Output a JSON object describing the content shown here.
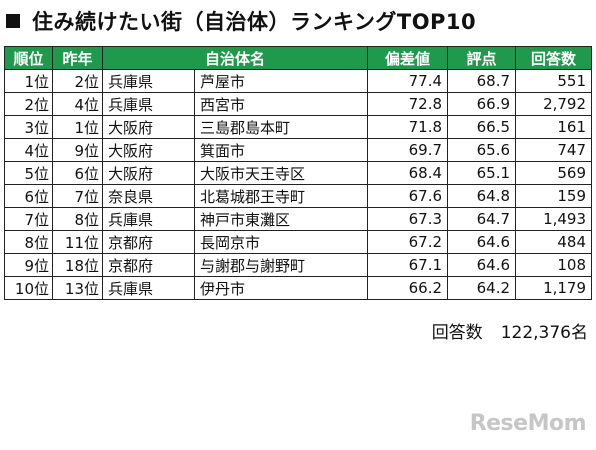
{
  "title": "住み続けたい街（自治体）ランキングTOP10",
  "headers": [
    "順位",
    "昨年",
    "自治体名",
    "",
    "偏差値",
    "評点",
    "回答数"
  ],
  "rows": [
    [
      "1位",
      "2位",
      "兵庫県",
      "芦屋市",
      "77.4",
      "68.7",
      "551"
    ],
    [
      "2位",
      "4位",
      "兵庫県",
      "西宮市",
      "72.8",
      "66.9",
      "2,792"
    ],
    [
      "3位",
      "1位",
      "大阪府",
      "三島郡島本町",
      "71.8",
      "66.5",
      "161"
    ],
    [
      "4位",
      "9位",
      "大阪府",
      "箕面市",
      "69.7",
      "65.6",
      "747"
    ],
    [
      "5位",
      "6位",
      "大阪府",
      "大阪市天王寺区",
      "68.4",
      "65.1",
      "569"
    ],
    [
      "6位",
      "7位",
      "奈良県",
      "北葛城郡王寺町",
      "67.6",
      "64.8",
      "159"
    ],
    [
      "7位",
      "8位",
      "兵庫県",
      "神戸市東灘区",
      "67.3",
      "64.7",
      "1,493"
    ],
    [
      "8位",
      "11位",
      "京都府",
      "長岡京市",
      "67.2",
      "64.6",
      "484"
    ],
    [
      "9位",
      "18位",
      "京都府",
      "与謝郡与謝野町",
      "67.1",
      "64.6",
      "108"
    ],
    [
      "10位",
      "13位",
      "兵庫県",
      "伊丹市",
      "66.2",
      "64.2",
      "1,179"
    ]
  ],
  "total": {
    "label": "回答数",
    "value": "122,376名"
  },
  "logo": "ReseMom",
  "colors": {
    "header_bg": "#1f9a4c",
    "header_text": "#ffffff"
  }
}
